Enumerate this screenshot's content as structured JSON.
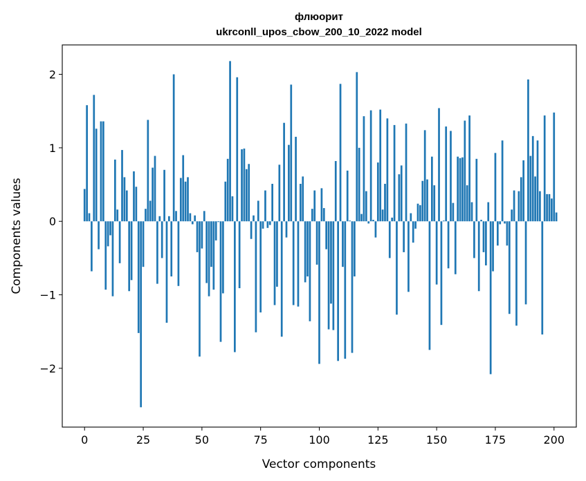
{
  "chart_data": {
    "type": "bar",
    "title": "флюорит",
    "subtitle": "ukrconll_upos_cbow_200_10_2022 model",
    "xlabel": "Vector components",
    "ylabel": "Components values",
    "xlim": [
      -9.5,
      209.5
    ],
    "ylim": [
      -2.8,
      2.4
    ],
    "xticks": [
      0,
      25,
      50,
      75,
      100,
      125,
      150,
      175,
      200
    ],
    "xtick_labels": [
      "0",
      "25",
      "50",
      "75",
      "100",
      "125",
      "150",
      "175",
      "200"
    ],
    "yticks": [
      -2,
      -1,
      0,
      1,
      2
    ],
    "ytick_labels": [
      "−2",
      "−1",
      "0",
      "1",
      "2"
    ],
    "grid": false,
    "bar_color": "#1f77b4",
    "values": [
      0.44,
      1.58,
      0.11,
      -0.68,
      1.72,
      1.26,
      -0.38,
      1.36,
      1.36,
      -0.93,
      -0.34,
      -0.19,
      -1.02,
      0.84,
      0.16,
      -0.57,
      0.97,
      0.6,
      0.42,
      -0.95,
      -0.8,
      0.68,
      0.47,
      -1.52,
      -2.53,
      -0.62,
      0.17,
      1.38,
      0.28,
      0.73,
      0.89,
      -0.85,
      0.07,
      -0.5,
      0.7,
      -1.38,
      0.07,
      -0.75,
      2.0,
      0.14,
      -0.88,
      0.59,
      0.9,
      0.54,
      0.6,
      0.11,
      -0.04,
      0.08,
      -0.42,
      -1.84,
      -0.37,
      0.14,
      -0.84,
      -1.02,
      -0.62,
      -0.93,
      -0.26,
      -0.01,
      -1.64,
      -0.98,
      0.54,
      0.85,
      2.18,
      0.34,
      -1.78,
      1.96,
      -0.91,
      0.98,
      0.99,
      0.71,
      0.78,
      -0.24,
      0.08,
      -1.51,
      0.28,
      -1.24,
      -0.1,
      0.42,
      -0.09,
      -0.05,
      0.51,
      -1.14,
      -0.89,
      0.77,
      -1.57,
      1.34,
      -0.22,
      1.04,
      1.86,
      -1.14,
      1.15,
      -1.16,
      0.51,
      0.61,
      -0.83,
      -0.75,
      -1.36,
      0.17,
      0.42,
      -0.59,
      -1.94,
      0.45,
      0.18,
      -0.38,
      -1.47,
      -1.12,
      -1.48,
      0.82,
      -1.9,
      1.87,
      -0.62,
      -1.87,
      0.69,
      0.01,
      -1.79,
      -0.75,
      2.03,
      1.0,
      0.1,
      1.43,
      0.41,
      -0.03,
      1.51,
      0.02,
      -0.22,
      0.8,
      1.52,
      0.16,
      0.51,
      1.4,
      -0.5,
      0.05,
      1.31,
      -1.27,
      0.64,
      0.76,
      -0.42,
      1.33,
      -0.96,
      0.11,
      -0.29,
      -0.1,
      0.24,
      0.22,
      0.55,
      1.24,
      0.57,
      -1.75,
      0.88,
      0.49,
      -0.86,
      1.54,
      -1.41,
      0.01,
      1.29,
      -0.64,
      1.23,
      0.25,
      -0.72,
      0.88,
      0.86,
      0.87,
      1.37,
      0.49,
      1.44,
      0.26,
      -0.5,
      0.85,
      -0.95,
      0.02,
      -0.42,
      -0.6,
      0.26,
      -2.08,
      -0.68,
      0.93,
      -0.33,
      -0.04,
      1.1,
      -0.03,
      -0.33,
      -1.26,
      0.16,
      0.42,
      -1.42,
      0.41,
      0.6,
      0.83,
      -1.13,
      1.93,
      0.89,
      1.16,
      0.61,
      1.1,
      0.41,
      -1.54,
      1.44,
      0.37,
      0.37,
      0.31,
      1.48,
      0.12
    ]
  }
}
